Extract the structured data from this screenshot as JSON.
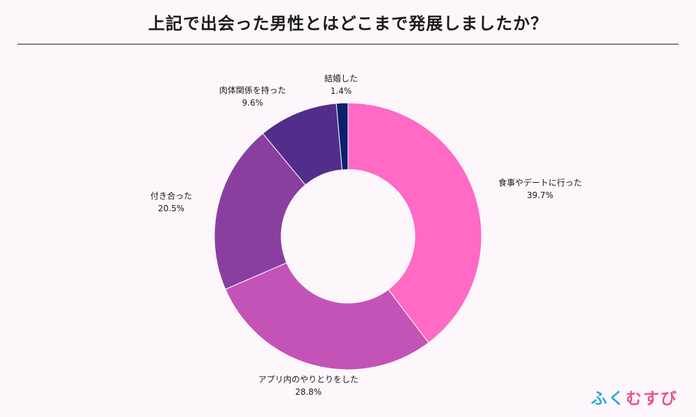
{
  "title": "上記で出会った男性とはどこまで発展しましたか？",
  "logo": {
    "part1": "ふく",
    "part2": "むすび"
  },
  "chart_data": {
    "type": "pie",
    "donut": true,
    "title": "上記で出会った男性とはどこまで発展しましたか？",
    "series": [
      {
        "label": "食事やデートに行った",
        "value": 39.7,
        "display": "39.7%",
        "color": "#ff6ac5"
      },
      {
        "label": "アプリ内のやりとりをした",
        "value": 28.8,
        "display": "28.8%",
        "color": "#c453b8"
      },
      {
        "label": "付き合った",
        "value": 20.5,
        "display": "20.5%",
        "color": "#8a3fa0"
      },
      {
        "label": "肉体関係を持った",
        "value": 9.6,
        "display": "9.6%",
        "color": "#532d8a"
      },
      {
        "label": "結婚した",
        "value": 1.4,
        "display": "1.4%",
        "color": "#0d1f6e"
      }
    ]
  }
}
